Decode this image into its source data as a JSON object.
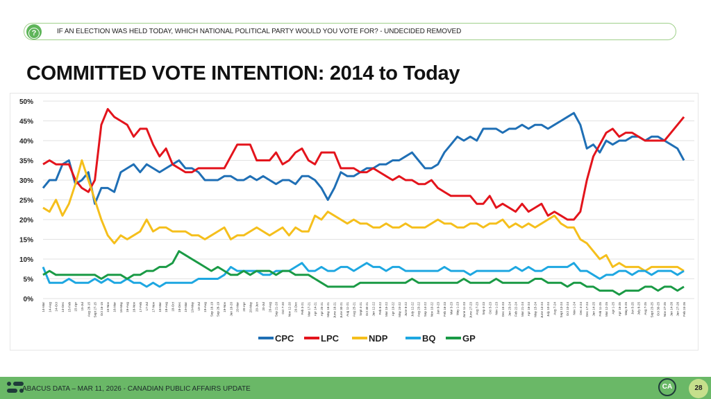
{
  "header": {
    "question": "IF AN ELECTION WAS HELD TODAY, WHICH NATIONAL POLITICAL PARTY WOULD YOU VOTE FOR? - UNDECIDED REMOVED",
    "question_icon": "question-circle-icon"
  },
  "title": "COMMITTED VOTE INTENTION: 2014 to Today",
  "footer": {
    "text": "ABACUS DATA – MAR 11, 2026 - CANADIAN PUBLIC AFFAIRS UPDATE",
    "logo_text": "CA",
    "page_number": "28",
    "color": "#6ab867"
  },
  "chart_data": {
    "type": "line",
    "title": "",
    "xlabel": "",
    "ylabel": "",
    "ylim": [
      0,
      50
    ],
    "yticks": [
      "0%",
      "5%",
      "10%",
      "15%",
      "20%",
      "25%",
      "30%",
      "35%",
      "40%",
      "45%",
      "50%"
    ],
    "grid": true,
    "legend": "bottom",
    "categories": [
      "14-Mar",
      "14-Aug",
      "14-Oct",
      "14-Dec",
      "15-Feb",
      "15-Apr",
      "15-Jul",
      "Aug 28-15",
      "Sept 27-15",
      "Oct 16-15",
      "15-Nov",
      "16-Mar",
      "16-May",
      "16-Aug",
      "16-Nov",
      "17-Feb",
      "17-Jul",
      "17-Nov",
      "18-Mar",
      "18-Aug",
      "18-Oct",
      "18-Dec",
      "19-Mar",
      "19-May",
      "19-Jul",
      "19-Aug",
      "Sep 16-19",
      "Sep 26-19",
      "19-Nov",
      "Jan 16-20",
      "20-Mar",
      "20-Apr",
      "20-May",
      "20-Jun",
      "20-Jul",
      "20-Aug",
      "Sep 21-20",
      "Oct 7-20",
      "Nov 12-20",
      "20-Dec",
      "Feb 3-21",
      "Mar 17-21",
      "Apr 14-21",
      "Apr 25-21",
      "May 16-21",
      "June 16-21",
      "June 30-21",
      "Aug 11-21",
      "Aug 25-21",
      "Sept 4-21",
      "Oct 30-21",
      "Jan 12-22",
      "Feb 8-22",
      "Mar 15-22",
      "Apr 19-22",
      "May 24-22",
      "June 8-22",
      "July 12-22",
      "Aug 23-22",
      "Sep 14-22",
      "Nov 10-22",
      "Jan 9-23",
      "Feb 16-23",
      "Mar 3-23",
      "May 1-23",
      "June 11-23",
      "June 27-23",
      "Aug 7-23",
      "Sep 4-23",
      "Oct 5-23",
      "Nov 1-23",
      "Dec 15-23",
      "Jan 23-24",
      "Feb 22-24",
      "Mar 21-24",
      "Apr 16-24",
      "May 15-24",
      "June 13-24",
      "July 10-24",
      "Aug 7-24",
      "Sept 13-24",
      "Oct 10-24",
      "Nov 1-24",
      "Dec 4-24",
      "Dec 17-24",
      "Jan 14-25",
      "Feb 11-25",
      "Mar 12-25",
      "Apr 1-25",
      "Apr 16-25",
      "May 5-25",
      "Jun 5-25",
      "July 8-25",
      "Aug 7-25",
      "Sept 23-25",
      "Oct 30-25",
      "Nov 27-25",
      "Jan 14-26",
      "Jan 27-26",
      "Feb 24-26"
    ],
    "series": [
      {
        "name": "CPC",
        "color": "#1f6fb5",
        "values": [
          28,
          30,
          30,
          34,
          35,
          29,
          30,
          32,
          24,
          28,
          28,
          27,
          32,
          33,
          34,
          32,
          34,
          33,
          32,
          33,
          34,
          35,
          33,
          33,
          32,
          30,
          30,
          30,
          31,
          31,
          30,
          30,
          31,
          30,
          31,
          30,
          29,
          30,
          30,
          29,
          31,
          31,
          30,
          28,
          25,
          28,
          32,
          31,
          31,
          32,
          33,
          33,
          34,
          34,
          35,
          35,
          36,
          37,
          35,
          33,
          33,
          34,
          37,
          39,
          41,
          40,
          41,
          40,
          43,
          43,
          43,
          42,
          43,
          43,
          44,
          43,
          44,
          44,
          43,
          44,
          45,
          46,
          47,
          44,
          38,
          39,
          37,
          40,
          39,
          40,
          40,
          41,
          41,
          40,
          41,
          41,
          40,
          39,
          38,
          35
        ]
      },
      {
        "name": "LPC",
        "color": "#e3141c",
        "values": [
          34,
          35,
          34,
          34,
          34,
          30,
          28,
          27,
          30,
          44,
          48,
          46,
          45,
          44,
          41,
          43,
          43,
          39,
          36,
          38,
          34,
          33,
          32,
          32,
          33,
          33,
          33,
          33,
          33,
          36,
          39,
          39,
          39,
          35,
          35,
          35,
          37,
          34,
          35,
          37,
          38,
          35,
          34,
          37,
          37,
          37,
          33,
          33,
          33,
          32,
          32,
          33,
          32,
          31,
          30,
          31,
          30,
          30,
          29,
          29,
          30,
          28,
          27,
          26,
          26,
          26,
          26,
          24,
          24,
          26,
          23,
          24,
          23,
          22,
          24,
          22,
          23,
          24,
          21,
          22,
          21,
          20,
          20,
          22,
          30,
          36,
          39,
          42,
          43,
          41,
          42,
          42,
          41,
          40,
          40,
          40,
          40,
          42,
          44,
          46
        ]
      },
      {
        "name": "NDP",
        "color": "#f5bf1c",
        "values": [
          23,
          22,
          25,
          21,
          24,
          29,
          35,
          30,
          25,
          20,
          16,
          14,
          16,
          15,
          16,
          17,
          20,
          17,
          18,
          18,
          17,
          17,
          17,
          16,
          16,
          15,
          16,
          17,
          18,
          15,
          16,
          16,
          17,
          18,
          17,
          16,
          17,
          18,
          16,
          18,
          17,
          17,
          21,
          20,
          22,
          21,
          20,
          19,
          20,
          19,
          19,
          18,
          18,
          19,
          18,
          18,
          19,
          18,
          18,
          18,
          19,
          20,
          19,
          19,
          18,
          18,
          19,
          19,
          18,
          19,
          19,
          20,
          18,
          19,
          18,
          19,
          18,
          19,
          20,
          21,
          19,
          18,
          18,
          15,
          14,
          12,
          10,
          11,
          8,
          9,
          8,
          8,
          8,
          7,
          8,
          8,
          8,
          8,
          8,
          7
        ]
      },
      {
        "name": "BQ",
        "color": "#1ea7e1",
        "values": [
          8,
          4,
          4,
          4,
          5,
          4,
          4,
          4,
          5,
          4,
          5,
          4,
          4,
          5,
          4,
          4,
          3,
          4,
          3,
          4,
          4,
          4,
          4,
          4,
          5,
          5,
          5,
          5,
          6,
          8,
          7,
          7,
          7,
          7,
          6,
          6,
          7,
          7,
          7,
          8,
          9,
          7,
          7,
          8,
          7,
          7,
          8,
          8,
          7,
          8,
          9,
          8,
          8,
          7,
          8,
          8,
          7,
          7,
          7,
          7,
          7,
          7,
          8,
          7,
          7,
          7,
          6,
          7,
          7,
          7,
          7,
          7,
          7,
          8,
          7,
          8,
          7,
          7,
          8,
          8,
          8,
          8,
          9,
          7,
          7,
          6,
          5,
          6,
          6,
          7,
          7,
          6,
          7,
          7,
          6,
          7,
          7,
          7,
          6,
          7
        ]
      },
      {
        "name": "GP",
        "color": "#1a9a45",
        "values": [
          6,
          7,
          6,
          6,
          6,
          6,
          6,
          6,
          6,
          5,
          6,
          6,
          6,
          5,
          6,
          6,
          7,
          7,
          8,
          8,
          9,
          12,
          11,
          10,
          9,
          8,
          7,
          8,
          7,
          6,
          6,
          7,
          6,
          7,
          7,
          7,
          6,
          7,
          7,
          6,
          6,
          6,
          5,
          4,
          3,
          3,
          3,
          3,
          3,
          4,
          4,
          4,
          4,
          4,
          4,
          4,
          4,
          5,
          4,
          4,
          4,
          4,
          4,
          4,
          4,
          5,
          4,
          4,
          4,
          4,
          5,
          4,
          4,
          4,
          4,
          4,
          5,
          5,
          4,
          4,
          4,
          3,
          4,
          4,
          3,
          3,
          2,
          2,
          2,
          1,
          2,
          2,
          2,
          3,
          3,
          2,
          3,
          3,
          2,
          3
        ]
      }
    ]
  }
}
